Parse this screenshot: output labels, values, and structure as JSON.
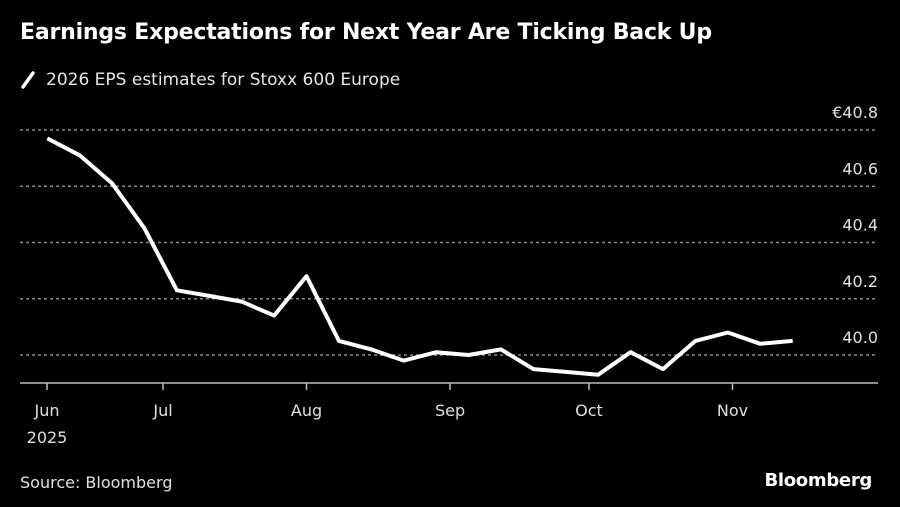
{
  "header": {
    "title": "Earnings Expectations for Next Year Are Ticking Back Up",
    "legend_label": "2026 EPS estimates for Stoxx 600 Europe"
  },
  "footer": {
    "source": "Source: Bloomberg",
    "brand": "Bloomberg"
  },
  "colors": {
    "background": "#000000",
    "line": "#ffffff",
    "grid": "#8a8a8a",
    "axis": "#bdbdbd",
    "text": "#e0e0e0"
  },
  "chart_data": {
    "type": "line",
    "title": "Earnings Expectations for Next Year Are Ticking Back Up",
    "xlabel": "",
    "ylabel": "",
    "y_unit_prefix": "€",
    "ylim": [
      39.9,
      40.8
    ],
    "yticks": [
      40.0,
      40.2,
      40.4,
      40.6,
      40.8
    ],
    "ytick_labels": [
      "40.0",
      "40.2",
      "40.4",
      "40.6",
      "€40.8"
    ],
    "xticks": [
      {
        "date": "2025-06-01",
        "label": "Jun",
        "sublabel": "2025"
      },
      {
        "date": "2025-07-01",
        "label": "Jul"
      },
      {
        "date": "2025-08-01",
        "label": "Aug"
      },
      {
        "date": "2025-09-01",
        "label": "Sep"
      },
      {
        "date": "2025-10-01",
        "label": "Oct"
      },
      {
        "date": "2025-11-01",
        "label": "Nov"
      }
    ],
    "grid": true,
    "legend_position": "top-left",
    "series": [
      {
        "name": "2026 EPS estimates for Stoxx 600 Europe",
        "x": [
          "2025-06-06",
          "2025-06-13",
          "2025-06-20",
          "2025-06-27",
          "2025-07-04",
          "2025-07-11",
          "2025-07-18",
          "2025-07-25",
          "2025-08-01",
          "2025-08-08",
          "2025-08-15",
          "2025-08-22",
          "2025-08-29",
          "2025-09-05",
          "2025-09-12",
          "2025-09-19",
          "2025-09-26",
          "2025-10-03",
          "2025-10-10",
          "2025-10-17",
          "2025-10-24",
          "2025-10-31",
          "2025-11-07",
          "2025-11-14"
        ],
        "values": [
          40.77,
          40.71,
          40.61,
          40.45,
          40.23,
          40.21,
          40.19,
          40.14,
          40.28,
          40.05,
          40.02,
          39.98,
          40.01,
          40.0,
          40.02,
          39.95,
          39.94,
          39.93,
          40.01,
          39.95,
          40.05,
          40.08,
          40.04,
          40.05
        ]
      }
    ]
  }
}
